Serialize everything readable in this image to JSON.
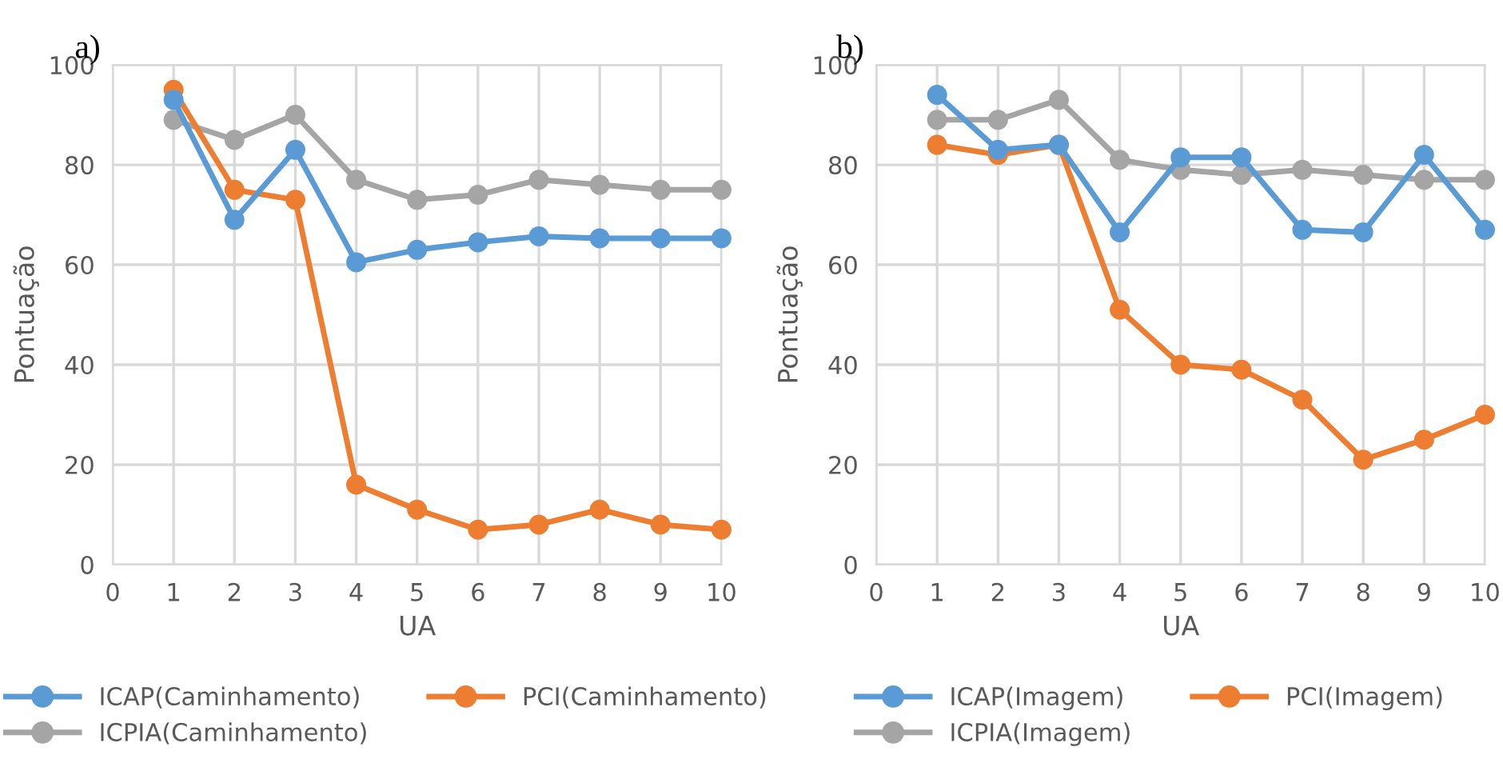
{
  "chart_data": [
    {
      "type": "line",
      "title": "a)",
      "xlabel": "UA",
      "ylabel": "Pontuação",
      "x": [
        1,
        2,
        3,
        4,
        5,
        6,
        7,
        8,
        9,
        10
      ],
      "xlim": [
        0,
        10
      ],
      "xticks": [
        0,
        1,
        2,
        3,
        4,
        5,
        6,
        7,
        8,
        9,
        10
      ],
      "ylim": [
        0,
        100
      ],
      "yticks": [
        0,
        20,
        40,
        60,
        80,
        100
      ],
      "grid": true,
      "legend": "bottom",
      "marker": "circle",
      "line_style": "solid",
      "series": [
        {
          "name": "ICAP(Caminhamento)",
          "color": "#5b9bd5",
          "values": [
            93,
            69,
            83,
            60.5,
            63,
            64.5,
            65.7,
            65.3,
            65.3,
            65.3
          ]
        },
        {
          "name": "PCI(Caminhamento)",
          "color": "#ed7d31",
          "values": [
            95,
            75,
            73,
            16,
            11,
            7,
            8,
            11,
            8,
            7
          ]
        },
        {
          "name": "ICPIA(Caminhamento)",
          "color": "#a5a5a5",
          "values": [
            89,
            85,
            90,
            77,
            73,
            74,
            77,
            76,
            75,
            75
          ]
        }
      ]
    },
    {
      "type": "line",
      "title": "b)",
      "xlabel": "UA",
      "ylabel": "Pontuação",
      "x": [
        1,
        2,
        3,
        4,
        5,
        6,
        7,
        8,
        9,
        10
      ],
      "xlim": [
        0,
        10
      ],
      "xticks": [
        0,
        1,
        2,
        3,
        4,
        5,
        6,
        7,
        8,
        9,
        10
      ],
      "ylim": [
        0,
        100
      ],
      "yticks": [
        0,
        20,
        40,
        60,
        80,
        100
      ],
      "grid": true,
      "legend": "bottom",
      "marker": "circle",
      "line_style": "solid",
      "series": [
        {
          "name": "ICAP(Imagem)",
          "color": "#5b9bd5",
          "values": [
            94,
            83,
            84,
            66.5,
            81.5,
            81.5,
            67,
            66.5,
            82,
            67
          ]
        },
        {
          "name": "PCI(Imagem)",
          "color": "#ed7d31",
          "values": [
            84,
            82,
            84,
            51,
            40,
            39,
            33,
            21,
            25,
            30
          ]
        },
        {
          "name": "ICPIA(Imagem)",
          "color": "#a5a5a5",
          "values": [
            89,
            89,
            93,
            81,
            79,
            78,
            79,
            78,
            77,
            77
          ]
        }
      ]
    }
  ]
}
